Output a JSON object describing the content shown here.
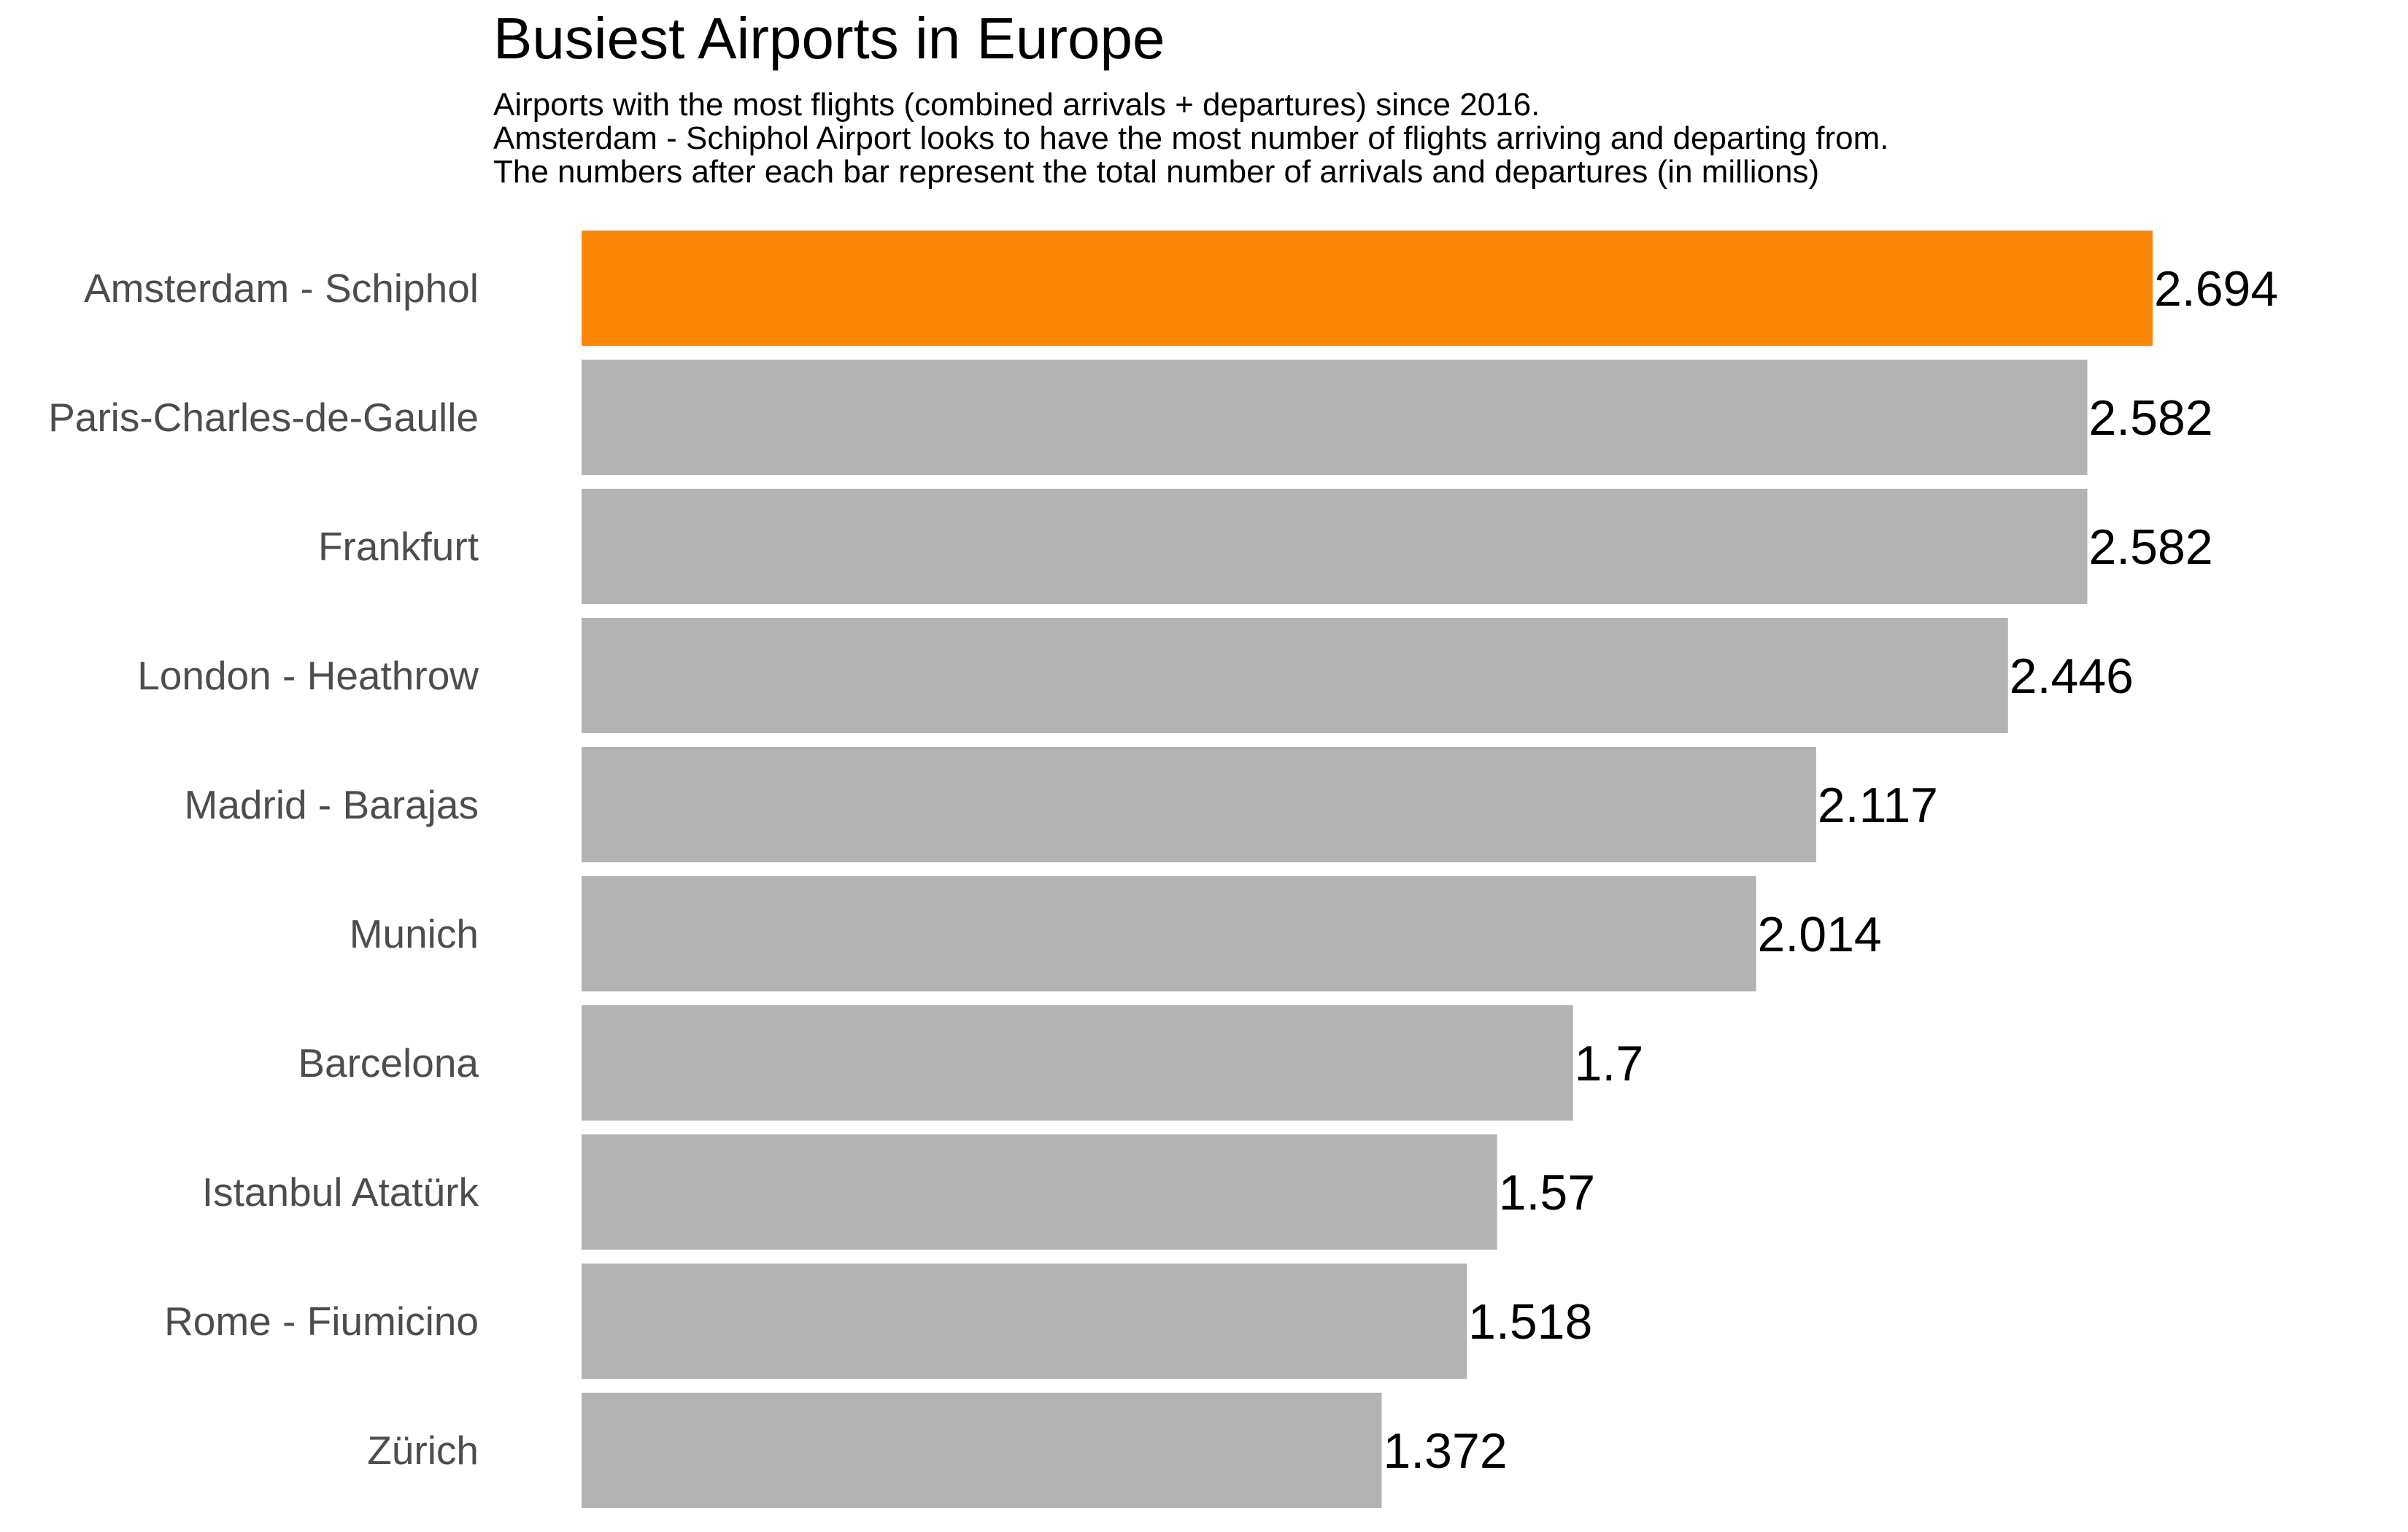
{
  "chart_data": {
    "type": "bar",
    "orientation": "horizontal",
    "title": "Busiest Airports in Europe",
    "subtitle": [
      "Airports with the most flights (combined arrivals + departures) since 2016.",
      "Amsterdam - Schiphol Airport looks to have the most number of flights arriving and departing from.",
      "The numbers after each bar represent the total number of arrivals and departures (in millions)"
    ],
    "categories": [
      "Amsterdam - Schiphol",
      "Paris-Charles-de-Gaulle",
      "Frankfurt",
      "London - Heathrow",
      "Madrid - Barajas",
      "Munich",
      "Barcelona",
      "Istanbul Atatürk",
      "Rome - Fiumicino",
      "Zürich"
    ],
    "values": [
      2.694,
      2.582,
      2.582,
      2.446,
      2.117,
      2.014,
      1.7,
      1.57,
      1.518,
      1.372
    ],
    "value_labels": [
      "2.694",
      "2.582",
      "2.582",
      "2.446",
      "2.117",
      "2.014",
      "1.7",
      "1.57",
      "1.518",
      "1.372"
    ],
    "highlight_index": 0,
    "colors": {
      "highlight": "#fb8504",
      "default": "#b3b3b3",
      "category_text": "#4d4d4d",
      "value_text": "#000000"
    },
    "xlim": [
      0,
      2.694
    ],
    "grid": false,
    "axes_visible": false
  }
}
